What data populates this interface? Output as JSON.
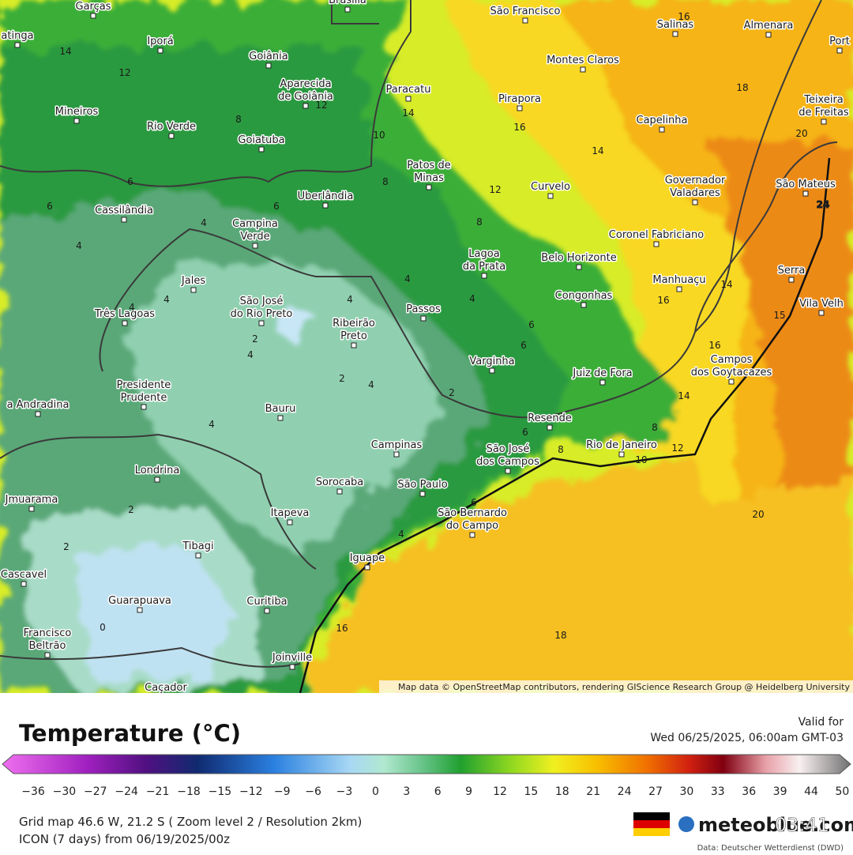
{
  "map": {
    "cities": [
      [
        "Garças"
      ],
      [
        "Brasília"
      ],
      [
        "São Francisco"
      ],
      [
        "Salinas"
      ],
      [
        "Almenara"
      ],
      [
        "Port"
      ],
      [
        "atinga"
      ],
      [
        "Iporá"
      ],
      [
        "Goiânia"
      ],
      [
        "Aparecida",
        "de Goiânia"
      ],
      [
        "Paracatu"
      ],
      [
        "Montes Claros"
      ],
      [
        "Pirapora"
      ],
      [
        "Teixeira",
        "de Freitas"
      ],
      [
        "Mineiros"
      ],
      [
        "Rio Verde"
      ],
      [
        "Goiatuba"
      ],
      [
        "Capelinha"
      ],
      [
        "Patos de",
        "Minas"
      ],
      [
        "Governador",
        "Valadares"
      ],
      [
        "São Mateus"
      ],
      [
        "Cassilândia"
      ],
      [
        "Uberlândia"
      ],
      [
        "Curvelo"
      ],
      [
        "Campina",
        "Verde"
      ],
      [
        "Coronel Fabriciano"
      ],
      [
        "Lagoa",
        "da Prata"
      ],
      [
        "Belo Horizonte"
      ],
      [
        "Serra"
      ],
      [
        "Jales"
      ],
      [
        "Manhuaçu"
      ],
      [
        "Vila Velh"
      ],
      [
        "São José",
        "do Rio Preto"
      ],
      [
        "Três Lagoas"
      ],
      [
        "Passos"
      ],
      [
        "Congonhas"
      ],
      [
        "Ribeirão",
        "Preto"
      ],
      [
        "Varginha"
      ],
      [
        "Juiz de Fora"
      ],
      [
        "Campos",
        "dos Goytacazes"
      ],
      [
        "Presidente",
        "Prudente"
      ],
      [
        "a Andradina"
      ],
      [
        "Bauru"
      ],
      [
        "Resende"
      ],
      [
        "Campinas"
      ],
      [
        "São José",
        "dos Campos"
      ],
      [
        "Rio de Janeiro"
      ],
      [
        "Londrina"
      ],
      [
        "Sorocaba"
      ],
      [
        "São Paulo"
      ],
      [
        "São Bernardo",
        "do Campo"
      ],
      [
        "Jmuarama"
      ],
      [
        "Itapeva"
      ],
      [
        "Tibagi"
      ],
      [
        "Iguape"
      ],
      [
        "Cascavel"
      ],
      [
        "Guarapuava"
      ],
      [
        "Curitiba"
      ],
      [
        "Francisco",
        "Beltrão"
      ],
      [
        "Joinville"
      ],
      [
        "Caçador"
      ]
    ],
    "contours": [
      "14",
      "12",
      "12",
      "8",
      "14",
      "16",
      "16",
      "18",
      "14",
      "10",
      "12",
      "8",
      "20",
      "6",
      "6",
      "8",
      "6",
      "4",
      "4",
      "4",
      "4",
      "4",
      "4",
      "4",
      "4",
      "2",
      "2",
      "4",
      "2",
      "6",
      "6",
      "16",
      "14",
      "16",
      "15",
      "14",
      "4",
      "6",
      "8",
      "8",
      "12",
      "10",
      "6",
      "4",
      "2",
      "2",
      "0",
      "16",
      "18",
      "20",
      "24"
    ],
    "attribution": "Map data © OpenStreetMap contributors, rendering GIScience Research Group @ Heidelberg University",
    "legend": {
      "title": "Temperature (°C)",
      "valid_label": "Valid for",
      "valid_time": "Wed 06/25/2025, 06:00am GMT-03",
      "ticks": [
        "−36",
        "−30",
        "−27",
        "−24",
        "−21",
        "−18",
        "−15",
        "−12",
        "−9",
        "−6",
        "−3",
        "0",
        "3",
        "6",
        "9",
        "12",
        "15",
        "18",
        "21",
        "24",
        "27",
        "30",
        "33",
        "36",
        "39",
        "44",
        "50"
      ]
    },
    "footer": {
      "grid": "Grid map 46.6 W, 21.2 S ( Zoom level 2 / Resolution 2km)",
      "model": "ICON (7 days) from 06/19/2025/00z",
      "brand": "meteoblue.com",
      "source": "Data: Deutscher Wetterdienst (DWD)",
      "clock": "03:41"
    }
  }
}
